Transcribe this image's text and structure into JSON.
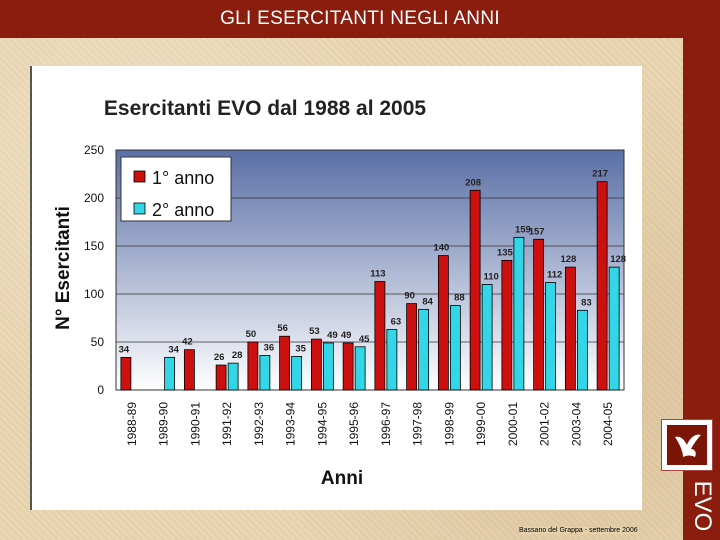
{
  "page": {
    "heading": "GLI ESERCITANTI NEGLI ANNI",
    "side_label": "EVO",
    "footer": "Bassano del Grappa - settembre 2006"
  },
  "colors": {
    "series1": "#cc1010",
    "series2": "#33d6e6",
    "plot_bg_top": "#5a6fa6",
    "plot_bg_bottom": "#ffffff",
    "title_bar": "#8a1d0e"
  },
  "chart_data": {
    "type": "bar",
    "title": "Esercitanti EVO dal 1988 al 2005",
    "xlabel": "Anni",
    "ylabel": "N° Esercitanti",
    "ylim": [
      0,
      250
    ],
    "yticks": [
      0,
      50,
      100,
      150,
      200,
      250
    ],
    "grid": true,
    "legend_position": "top-left",
    "categories": [
      "1988-89",
      "1989-90",
      "1990-91",
      "1991-92",
      "1992-93",
      "1993-94",
      "1994-95",
      "1995-96",
      "1996-97",
      "1997-98",
      "1998-99",
      "1999-00",
      "2000-01",
      "2001-02",
      "2003-04",
      "2004-05"
    ],
    "series": [
      {
        "name": "1° anno",
        "values": [
          34,
          null,
          42,
          26,
          50,
          56,
          53,
          49,
          113,
          90,
          140,
          208,
          135,
          157,
          128,
          217
        ]
      },
      {
        "name": "2° anno",
        "values": [
          null,
          34,
          null,
          28,
          36,
          35,
          49,
          45,
          63,
          84,
          88,
          110,
          159,
          112,
          83,
          128
        ]
      }
    ]
  }
}
